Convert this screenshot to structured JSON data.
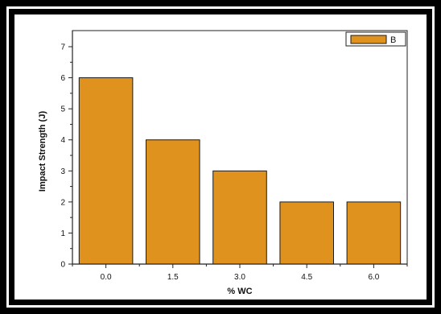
{
  "chart_data": {
    "type": "bar",
    "categories": [
      "0.0",
      "1.5",
      "3.0",
      "4.5",
      "6.0"
    ],
    "series": [
      {
        "name": "B",
        "values": [
          6,
          4,
          3,
          2,
          2
        ]
      }
    ],
    "xlabel": "% WC",
    "ylabel": "Impact Strength (J)",
    "ylim": [
      0,
      7
    ],
    "yticks": [
      0,
      1,
      2,
      3,
      4,
      5,
      6,
      7
    ],
    "grid": false,
    "legend_position": "top-right",
    "bar_color": "#e0921f",
    "edge_color": "#1a1a1a"
  }
}
